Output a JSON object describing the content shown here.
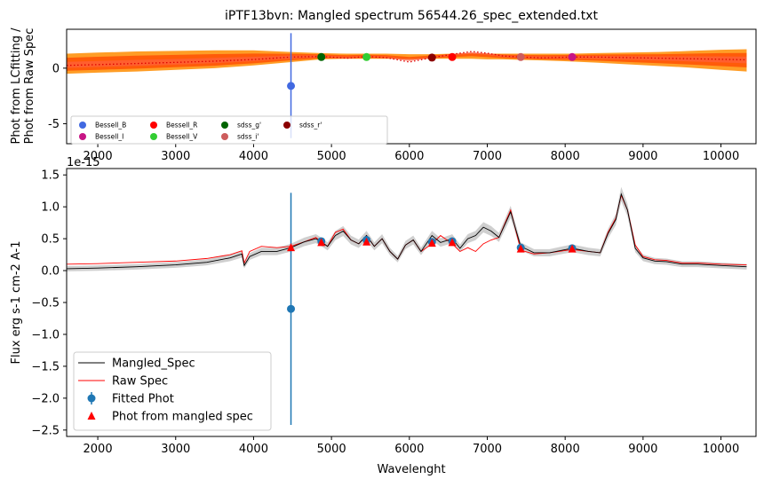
{
  "chart_data": [
    {
      "type": "scatter",
      "title": "iPTF13bvn: Mangled spectrum 56544.26_spec_extended.txt",
      "ylabel_line1": "Phot from LCfitting /",
      "ylabel_line2": "Phot from Raw Spec",
      "xlim": [
        1600,
        10450
      ],
      "ylim": [
        -6.8,
        3.5
      ],
      "xticks": [
        2000,
        3000,
        4000,
        5000,
        6000,
        7000,
        8000,
        9000,
        10000
      ],
      "yticks": [
        -5,
        0
      ],
      "curve_x": [
        1600,
        2000,
        2500,
        3000,
        3500,
        4000,
        4480,
        4870,
        5200,
        5450,
        5700,
        6000,
        6290,
        6550,
        6800,
        7000,
        7200,
        7430,
        7700,
        8090,
        8400,
        8800,
        9200,
        9600,
        10000,
        10330
      ],
      "curve_y": [
        0.25,
        0.32,
        0.42,
        0.52,
        0.63,
        0.78,
        1.0,
        1.05,
        0.9,
        1.05,
        0.95,
        0.55,
        0.95,
        1.25,
        1.5,
        1.35,
        1.1,
        1.0,
        0.93,
        1.0,
        1.0,
        0.95,
        0.9,
        0.85,
        0.8,
        0.75
      ],
      "band_upper": [
        1.3,
        1.4,
        1.5,
        1.55,
        1.6,
        1.6,
        1.45,
        1.35,
        1.3,
        1.3,
        1.3,
        1.25,
        1.25,
        1.3,
        1.3,
        1.3,
        1.3,
        1.3,
        1.3,
        1.3,
        1.35,
        1.4,
        1.45,
        1.55,
        1.65,
        1.7
      ],
      "band_lower": [
        -0.5,
        -0.4,
        -0.3,
        -0.15,
        0.0,
        0.25,
        0.55,
        0.8,
        0.85,
        0.85,
        0.85,
        0.85,
        0.85,
        0.85,
        0.85,
        0.8,
        0.8,
        0.75,
        0.7,
        0.6,
        0.5,
        0.35,
        0.2,
        0.05,
        -0.15,
        -0.3
      ],
      "errorbar": {
        "x": 4480,
        "y": -1.6,
        "yerr_low": 1.6,
        "yerr_high": 2.1,
        "ymin": -6.3,
        "ymax": 3.15,
        "color": "#4169e1"
      },
      "points": [
        {
          "name": "Bessell_B",
          "x": 4480,
          "y": -1.6,
          "color": "#4169e1"
        },
        {
          "name": "Bessell_V",
          "x": 5450,
          "y": 1.0,
          "color": "#32cd32"
        },
        {
          "name": "Bessell_R",
          "x": 6550,
          "y": 1.0,
          "color": "#ff0000"
        },
        {
          "name": "Bessell_I",
          "x": 8090,
          "y": 1.0,
          "color": "#c71585"
        },
        {
          "name": "sdss_g'",
          "x": 4870,
          "y": 1.0,
          "color": "#006400"
        },
        {
          "name": "sdss_r'",
          "x": 6290,
          "y": 0.95,
          "color": "#8b0000"
        },
        {
          "name": "sdss_i'",
          "x": 7430,
          "y": 1.0,
          "color": "#cd5c5c"
        }
      ],
      "legend": [
        {
          "label": "Bessell_B",
          "color": "#4169e1"
        },
        {
          "label": "Bessell_I",
          "color": "#c71585"
        },
        {
          "label": "Bessell_R",
          "color": "#ff0000"
        },
        {
          "label": "Bessell_V",
          "color": "#32cd32"
        },
        {
          "label": "sdss_g'",
          "color": "#006400"
        },
        {
          "label": "sdss_i'",
          "color": "#cd5c5c"
        },
        {
          "label": "sdss_r'",
          "color": "#8b0000"
        }
      ],
      "legend_position": "lower-left"
    },
    {
      "type": "line",
      "offset_text": "1e-15",
      "xlabel": "Wavelenght",
      "ylabel": "Flux erg s-1 cm-2 A-1",
      "xlim": [
        1600,
        10450
      ],
      "ylim": [
        -2.6,
        1.6
      ],
      "xticks": [
        2000,
        3000,
        4000,
        5000,
        6000,
        7000,
        8000,
        9000,
        10000
      ],
      "yticks": [
        -2.5,
        -2.0,
        -1.5,
        -1.0,
        -0.5,
        0.0,
        0.5,
        1.0,
        1.5
      ],
      "x": [
        1600,
        2000,
        2500,
        3000,
        3400,
        3700,
        3850,
        3880,
        3950,
        4100,
        4300,
        4480,
        4650,
        4800,
        4870,
        4950,
        5050,
        5150,
        5250,
        5350,
        5450,
        5550,
        5650,
        5750,
        5850,
        5950,
        6050,
        6150,
        6290,
        6400,
        6550,
        6650,
        6750,
        6850,
        6950,
        7050,
        7150,
        7300,
        7430,
        7600,
        7800,
        8090,
        8300,
        8450,
        8550,
        8650,
        8720,
        8800,
        8900,
        9000,
        9150,
        9300,
        9500,
        9700,
        10000,
        10330
      ],
      "series": [
        {
          "name": "Mangled_Spec",
          "color": "#000000",
          "values": [
            0.03,
            0.04,
            0.06,
            0.09,
            0.13,
            0.2,
            0.26,
            0.08,
            0.22,
            0.3,
            0.3,
            0.36,
            0.45,
            0.5,
            0.45,
            0.38,
            0.55,
            0.62,
            0.48,
            0.42,
            0.55,
            0.38,
            0.5,
            0.3,
            0.18,
            0.4,
            0.48,
            0.3,
            0.55,
            0.44,
            0.5,
            0.35,
            0.5,
            0.55,
            0.68,
            0.62,
            0.52,
            0.92,
            0.38,
            0.28,
            0.28,
            0.35,
            0.3,
            0.28,
            0.58,
            0.8,
            1.2,
            0.95,
            0.35,
            0.2,
            0.15,
            0.14,
            0.1,
            0.1,
            0.08,
            0.06
          ]
        },
        {
          "name": "Raw Spec",
          "color": "#ff0000",
          "values": [
            0.1,
            0.11,
            0.13,
            0.15,
            0.19,
            0.25,
            0.31,
            0.12,
            0.3,
            0.38,
            0.36,
            0.38,
            0.45,
            0.52,
            0.45,
            0.38,
            0.6,
            0.65,
            0.48,
            0.42,
            0.55,
            0.38,
            0.5,
            0.3,
            0.18,
            0.4,
            0.48,
            0.3,
            0.42,
            0.55,
            0.42,
            0.3,
            0.36,
            0.3,
            0.42,
            0.48,
            0.52,
            0.95,
            0.32,
            0.26,
            0.28,
            0.33,
            0.3,
            0.28,
            0.6,
            0.82,
            1.18,
            0.95,
            0.4,
            0.22,
            0.17,
            0.16,
            0.12,
            0.12,
            0.1,
            0.09
          ]
        }
      ],
      "errorbar": {
        "x": 4480,
        "y": -0.6,
        "ymin": -2.42,
        "ymax": 1.22,
        "color": "#1f77b4"
      },
      "fitted_phot": {
        "x": [
          4870,
          5450,
          6290,
          6550,
          7430,
          8090
        ],
        "y": [
          0.46,
          0.48,
          0.45,
          0.46,
          0.36,
          0.35
        ],
        "color": "#1f77b4"
      },
      "phot_mangled": {
        "x": [
          4480,
          4870,
          5450,
          6290,
          6550,
          7430,
          8090
        ],
        "y": [
          0.36,
          0.44,
          0.45,
          0.43,
          0.44,
          0.34,
          0.34
        ],
        "color": "#ff0000"
      },
      "legend": [
        {
          "label": "Mangled_Spec",
          "kind": "line",
          "color": "#000000"
        },
        {
          "label": "Raw Spec",
          "kind": "line",
          "color": "#ff0000"
        },
        {
          "label": "Fitted Phot",
          "kind": "errpoint",
          "color": "#1f77b4"
        },
        {
          "label": "Phot from mangled spec",
          "kind": "triangle",
          "color": "#ff0000"
        }
      ],
      "legend_position": "lower-left"
    }
  ]
}
